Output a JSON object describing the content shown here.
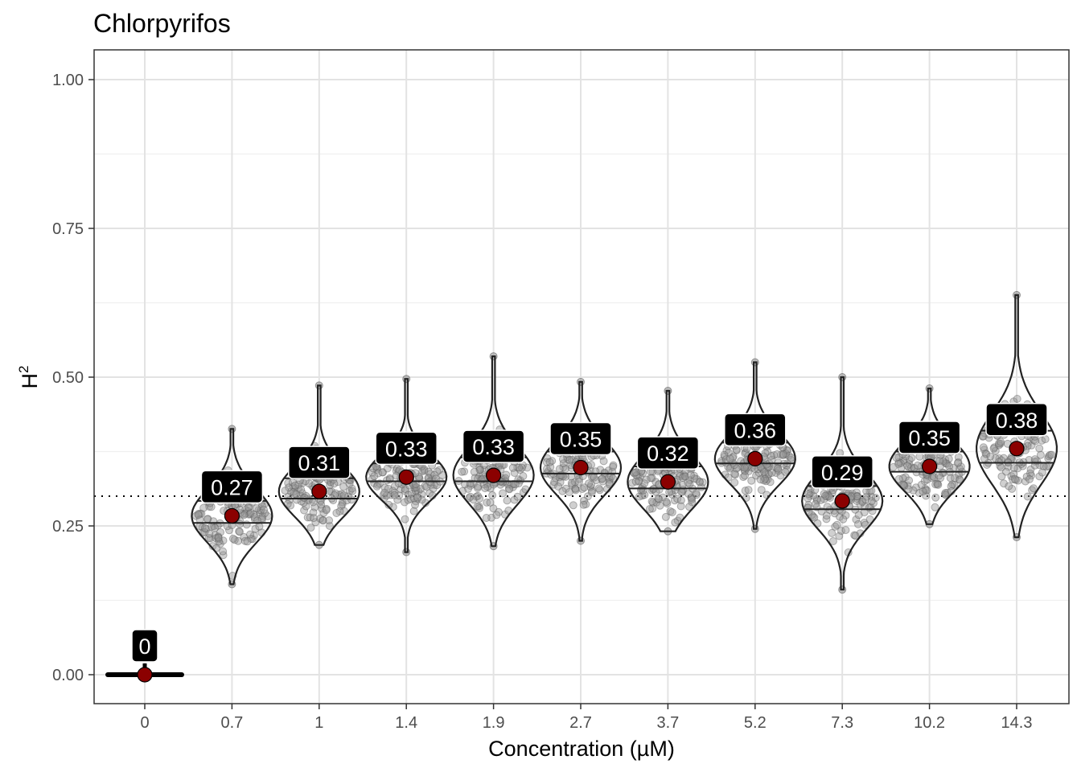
{
  "chart_data": {
    "type": "violin",
    "title": "Chlorpyrifos",
    "xlabel": "Concentration (µM)",
    "ylabel": "H",
    "ylabel_superscript": "2",
    "categories": [
      "0",
      "0.7",
      "1",
      "1.4",
      "1.9",
      "2.7",
      "3.7",
      "5.2",
      "7.3",
      "10.2",
      "14.3"
    ],
    "ylim": [
      -0.05,
      1.05
    ],
    "yticks": [
      0.0,
      0.25,
      0.5,
      0.75,
      1.0
    ],
    "ytick_labels": [
      "0.00",
      "0.25",
      "0.50",
      "0.75",
      "1.00"
    ],
    "reference_line": 0.3,
    "grid": true,
    "point_color": "#8b0000",
    "violin_stroke": "#222222",
    "jitter_color": "#888888",
    "series": [
      {
        "category": "0",
        "mean": 0.0,
        "label": "0",
        "min": 0.0,
        "max": 0.0,
        "q1": 0.0,
        "q3": 0.0
      },
      {
        "category": "0.7",
        "mean": 0.267,
        "label": "0.27",
        "min": 0.152,
        "max": 0.413,
        "q1": 0.255,
        "q3": 0.292
      },
      {
        "category": "1",
        "mean": 0.308,
        "label": "0.31",
        "min": 0.218,
        "max": 0.486,
        "q1": 0.296,
        "q3": 0.33
      },
      {
        "category": "1.4",
        "mean": 0.332,
        "label": "0.33",
        "min": 0.206,
        "max": 0.497,
        "q1": 0.325,
        "q3": 0.355
      },
      {
        "category": "1.9",
        "mean": 0.335,
        "label": "0.33",
        "min": 0.216,
        "max": 0.535,
        "q1": 0.325,
        "q3": 0.365
      },
      {
        "category": "2.7",
        "mean": 0.348,
        "label": "0.35",
        "min": 0.225,
        "max": 0.492,
        "q1": 0.338,
        "q3": 0.375
      },
      {
        "category": "3.7",
        "mean": 0.324,
        "label": "0.32",
        "min": 0.241,
        "max": 0.477,
        "q1": 0.313,
        "q3": 0.35
      },
      {
        "category": "5.2",
        "mean": 0.363,
        "label": "0.36",
        "min": 0.245,
        "max": 0.525,
        "q1": 0.355,
        "q3": 0.39
      },
      {
        "category": "7.3",
        "mean": 0.292,
        "label": "0.29",
        "min": 0.143,
        "max": 0.5,
        "q1": 0.278,
        "q3": 0.317
      },
      {
        "category": "10.2",
        "mean": 0.35,
        "label": "0.35",
        "min": 0.253,
        "max": 0.481,
        "q1": 0.341,
        "q3": 0.375
      },
      {
        "category": "14.3",
        "mean": 0.38,
        "label": "0.38",
        "min": 0.231,
        "max": 0.638,
        "q1": 0.356,
        "q3": 0.41
      }
    ]
  }
}
